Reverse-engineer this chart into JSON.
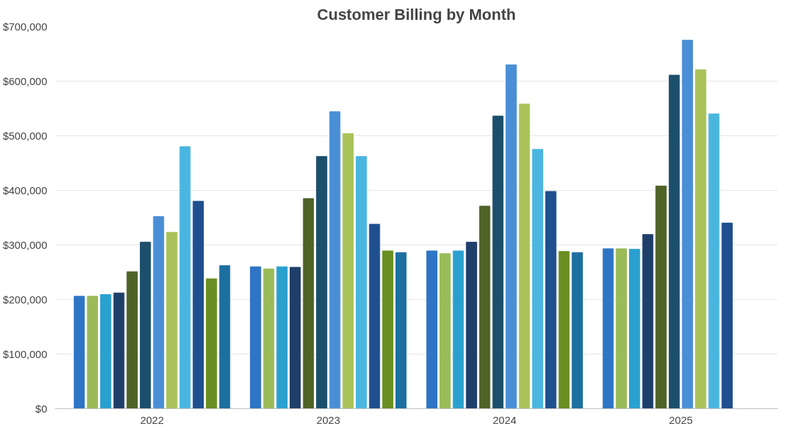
{
  "chart_data": {
    "type": "bar",
    "title": "Customer Billing by Month",
    "categories": [
      "2022",
      "2023",
      "2024",
      "2025"
    ],
    "series": [
      {
        "color": "#2e75c5",
        "values": [
          206000,
          260000,
          289000,
          293000
        ]
      },
      {
        "color": "#9bbb59",
        "values": [
          206000,
          256000,
          284000,
          293000
        ]
      },
      {
        "color": "#2aa0cf",
        "values": [
          209000,
          260000,
          289000,
          292000
        ]
      },
      {
        "color": "#1f3f6b",
        "values": [
          212000,
          259000,
          305000,
          319000
        ]
      },
      {
        "color": "#4f6228",
        "values": [
          251000,
          385000,
          371000,
          408000
        ]
      },
      {
        "color": "#1b4f6b",
        "values": [
          305000,
          462000,
          536000,
          611000
        ]
      },
      {
        "color": "#4a8fd6",
        "values": [
          352000,
          544000,
          630000,
          675000
        ]
      },
      {
        "color": "#a9c35a",
        "values": [
          323000,
          504000,
          558000,
          621000
        ]
      },
      {
        "color": "#4ab6e0",
        "values": [
          480000,
          462000,
          475000,
          540000
        ]
      },
      {
        "color": "#1f4f8f",
        "values": [
          380000,
          338000,
          398000,
          340000
        ]
      },
      {
        "color": "#6b8e23",
        "values": [
          238000,
          289000,
          288000,
          null
        ]
      },
      {
        "color": "#1d6fa0",
        "values": [
          262000,
          286000,
          286000,
          null
        ]
      }
    ],
    "ylim": [
      0,
      700000
    ],
    "yticks": [
      {
        "value": 0,
        "label": "$0"
      },
      {
        "value": 100000,
        "label": "$100,000"
      },
      {
        "value": 200000,
        "label": "$200,000"
      },
      {
        "value": 300000,
        "label": "$300,000"
      },
      {
        "value": 400000,
        "label": "$400,000"
      },
      {
        "value": 500000,
        "label": "$500,000"
      },
      {
        "value": 600000,
        "label": "$600,000"
      },
      {
        "value": 700000,
        "label": "$700,000"
      }
    ],
    "grid": "y"
  }
}
